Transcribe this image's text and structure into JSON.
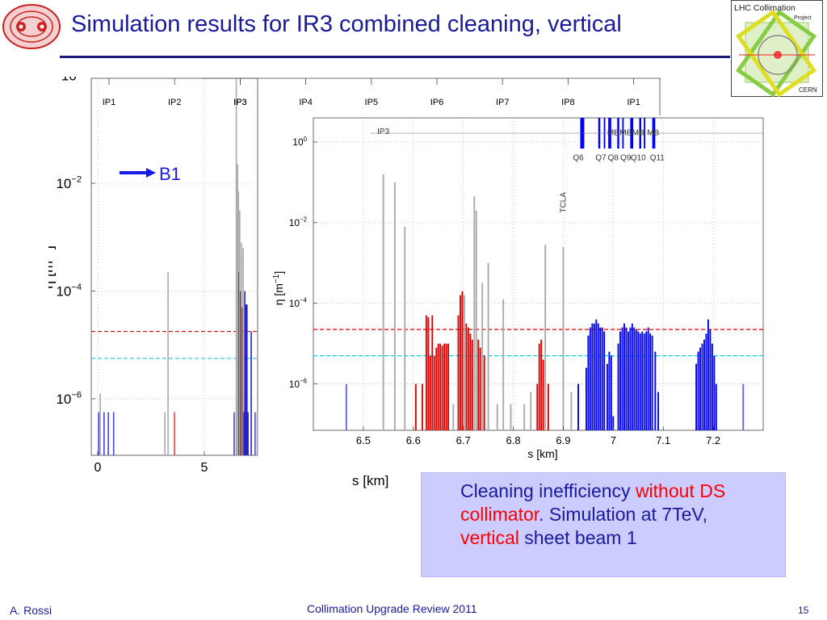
{
  "slide": {
    "title": "Simulation results for IR3 combined cleaning, vertical",
    "author": "A. Rossi",
    "event": "Collimation Upgrade Review 2011",
    "page_number": "15",
    "logo_right_lines": [
      "LHC Collimation",
      "Project",
      "CERN"
    ],
    "beam_label": "B1",
    "info_box": {
      "parts": [
        {
          "text": "Cleaning inefficiency ",
          "highlight": false
        },
        {
          "text": "without",
          "highlight": true
        },
        {
          "text": " ",
          "highlight": false
        },
        {
          "text": "DS collimator",
          "highlight": true
        },
        {
          "text": ". Simulation at 7TeV, ",
          "highlight": false
        },
        {
          "text": "vertical",
          "highlight": true
        },
        {
          "text": " sheet beam 1",
          "highlight": false
        }
      ]
    },
    "colors": {
      "title": "#1a1a9e",
      "highlight": "#ff0000",
      "info_bg": "#ccccff",
      "beam_arrow": "#1a1ae6"
    }
  },
  "chart_data": [
    {
      "type": "bar",
      "panel": "full ring",
      "ylabel_parts": [
        "η [m",
        "−1",
        "]"
      ],
      "xlabel": "s [km]",
      "yscale": "log",
      "ylim_exp": [
        -7.05,
        -0.05
      ],
      "xlim": [
        -0.3,
        7.5
      ],
      "xtick_labels": [
        {
          "value": 0,
          "label": "0"
        },
        {
          "value": 5,
          "label": "5"
        }
      ],
      "ytick_labels": [
        {
          "exp": 0,
          "label": "10",
          "sup": "0"
        },
        {
          "exp": -2,
          "label": "10",
          "sup": "−2"
        },
        {
          "exp": -4,
          "label": "10",
          "sup": "−4"
        },
        {
          "exp": -6,
          "label": "10",
          "sup": "−6"
        }
      ],
      "ip_labels": [
        {
          "name": "IP1",
          "s": 0
        },
        {
          "name": "IP2",
          "s": 3.33
        },
        {
          "name": "IP3",
          "s": 6.66
        },
        {
          "name": "IP4",
          "s": 10.0
        },
        {
          "name": "IP5",
          "s": 13.33
        },
        {
          "name": "IP6",
          "s": 16.66
        },
        {
          "name": "IP7",
          "s": 20.0
        },
        {
          "name": "IP8",
          "s": 23.33
        },
        {
          "name": "IP1",
          "s": 26.66
        }
      ],
      "reference_lines": [
        {
          "exp": -4.75,
          "color": "#e00000"
        },
        {
          "exp": -5.25,
          "color": "#00d0e0"
        }
      ],
      "loss_bars": [
        {
          "s": 0.05,
          "exp": -6.25,
          "color": "#4444ee"
        },
        {
          "s": 0.12,
          "exp": -5.9,
          "color": "#aaaaaa"
        },
        {
          "s": 0.3,
          "exp": -6.25,
          "color": "#4444ee"
        },
        {
          "s": 0.5,
          "exp": -6.25,
          "color": "#4444ee"
        },
        {
          "s": 0.75,
          "exp": -6.25,
          "color": "#4444ee"
        },
        {
          "s": 3.15,
          "exp": -6.25,
          "color": "#aaaaaa"
        },
        {
          "s": 3.3,
          "exp": -3.65,
          "color": "#aaaaaa"
        },
        {
          "s": 3.6,
          "exp": -6.25,
          "color": "#ee4444"
        },
        {
          "s": 6.4,
          "exp": -6.25,
          "color": "#4444ee"
        },
        {
          "s": 6.5,
          "exp": -0.05,
          "color": "#aaaaaa"
        },
        {
          "s": 6.56,
          "exp": -1.65,
          "color": "#aaaaaa"
        },
        {
          "s": 6.6,
          "exp": -2.15,
          "color": "#aaaaaa"
        },
        {
          "s": 6.63,
          "exp": -3.65,
          "color": "#e00000"
        },
        {
          "s": 6.66,
          "exp": -2.5,
          "color": "#aaaaaa"
        },
        {
          "s": 6.7,
          "exp": -4.0,
          "color": "#e00000"
        },
        {
          "s": 6.74,
          "exp": -3.1,
          "color": "#aaaaaa"
        },
        {
          "s": 6.78,
          "exp": -4.3,
          "color": "#e00000"
        },
        {
          "s": 6.82,
          "exp": -3.2,
          "color": "#aaaaaa"
        },
        {
          "s": 6.86,
          "exp": -6.25,
          "color": "#2222cc"
        },
        {
          "s": 6.9,
          "exp": -4.0,
          "color": "#2222cc"
        },
        {
          "s": 6.95,
          "exp": -4.25,
          "color": "#2222cc"
        },
        {
          "s": 7.0,
          "exp": -4.25,
          "color": "#2222cc"
        },
        {
          "s": 7.05,
          "exp": -6.25,
          "color": "#2222cc"
        },
        {
          "s": 7.2,
          "exp": -4.75,
          "color": "#2222cc"
        },
        {
          "s": 7.38,
          "exp": -6.25,
          "color": "#4444ee"
        },
        {
          "s": 7.48,
          "exp": -6.25,
          "color": "#aaaaaa"
        }
      ]
    },
    {
      "type": "bar",
      "panel": "zoom on dispersion suppressor",
      "ylabel_parts": [
        "η [m",
        "−1",
        "]"
      ],
      "xlabel": "s [km]",
      "yscale": "log",
      "ylim_exp": [
        -7.15,
        0.6
      ],
      "xlim": [
        6.4,
        7.3
      ],
      "xtick_labels": [
        {
          "value": 6.5,
          "label": "6.5"
        },
        {
          "value": 6.6,
          "label": "6.6"
        },
        {
          "value": 6.7,
          "label": "6.7"
        },
        {
          "value": 6.8,
          "label": "6.8"
        },
        {
          "value": 6.9,
          "label": "6.9"
        },
        {
          "value": 7.0,
          "label": "7"
        },
        {
          "value": 7.1,
          "label": "7.1"
        },
        {
          "value": 7.2,
          "label": "7.2"
        }
      ],
      "ytick_labels": [
        {
          "exp": 0,
          "label": "10",
          "sup": "0"
        },
        {
          "exp": -2,
          "label": "10",
          "sup": "−2"
        },
        {
          "exp": -4,
          "label": "10",
          "sup": "−4"
        },
        {
          "exp": -6,
          "label": "10",
          "sup": "−6"
        }
      ],
      "annotations": [
        {
          "text": "IP3",
          "s": 6.54,
          "exp": 0.2
        },
        {
          "text": "TCLA",
          "s": 6.905,
          "exp": -1.5,
          "rotate": true
        },
        {
          "text": "MB",
          "s": 7.0,
          "exp": 0.17
        },
        {
          "text": "MB",
          "s": 7.025,
          "exp": 0.17
        },
        {
          "text": "MB",
          "s": 7.05,
          "exp": 0.17
        },
        {
          "text": "MB",
          "s": 7.08,
          "exp": 0.17
        },
        {
          "text": "Q6",
          "s": 6.93,
          "exp": -0.45
        },
        {
          "text": "Q7",
          "s": 6.975,
          "exp": -0.45
        },
        {
          "text": "Q8",
          "s": 7.0,
          "exp": -0.45
        },
        {
          "text": "Q9",
          "s": 7.025,
          "exp": -0.45
        },
        {
          "text": "Q10",
          "s": 7.05,
          "exp": -0.45
        },
        {
          "text": "Q11",
          "s": 7.088,
          "exp": -0.45
        }
      ],
      "magnets": [
        {
          "s0": 6.934,
          "s1": 6.942,
          "color": "#0000ff"
        },
        {
          "s0": 6.97,
          "s1": 6.974,
          "color": "#0000ff"
        },
        {
          "s0": 6.981,
          "s1": 6.984,
          "color": "#0000ff"
        },
        {
          "s0": 6.99,
          "s1": 6.996,
          "color": "#0000ff"
        },
        {
          "s0": 7.008,
          "s1": 7.012,
          "color": "#0000ff"
        },
        {
          "s0": 7.018,
          "s1": 7.021,
          "color": "#0000ff"
        },
        {
          "s0": 7.034,
          "s1": 7.04,
          "color": "#0000ff"
        },
        {
          "s0": 7.052,
          "s1": 7.056,
          "color": "#0000ff"
        },
        {
          "s0": 7.061,
          "s1": 7.064,
          "color": "#0000ff"
        },
        {
          "s0": 7.078,
          "s1": 7.084,
          "color": "#0000ff"
        }
      ],
      "reference_lines": [
        {
          "exp": -4.65,
          "color": "#e00000"
        },
        {
          "exp": -5.3,
          "color": "#00d0e0"
        }
      ],
      "loss_bars": [
        {
          "s": 6.466,
          "exp": -6.0,
          "color": "#6666ee"
        },
        {
          "s": 6.54,
          "exp": -0.8,
          "color": "#aaaaaa"
        },
        {
          "s": 6.563,
          "exp": -1.0,
          "color": "#aaaaaa"
        },
        {
          "s": 6.583,
          "exp": -2.1,
          "color": "#aaaaaa"
        },
        {
          "s": 6.605,
          "exp": -6.0,
          "color": "#e00000"
        },
        {
          "s": 6.618,
          "exp": -6.0,
          "color": "#e00000"
        },
        {
          "s": 6.626,
          "exp": -4.3,
          "color": "#e00000"
        },
        {
          "s": 6.63,
          "exp": -4.35,
          "color": "#e00000"
        },
        {
          "s": 6.634,
          "exp": -5.3,
          "color": "#e00000"
        },
        {
          "s": 6.638,
          "exp": -4.3,
          "color": "#e00000"
        },
        {
          "s": 6.642,
          "exp": -5.3,
          "color": "#e00000"
        },
        {
          "s": 6.646,
          "exp": -5.1,
          "color": "#e00000"
        },
        {
          "s": 6.65,
          "exp": -5.0,
          "color": "#e00000"
        },
        {
          "s": 6.654,
          "exp": -5.0,
          "color": "#e00000"
        },
        {
          "s": 6.658,
          "exp": -5.05,
          "color": "#e00000"
        },
        {
          "s": 6.662,
          "exp": -5.0,
          "color": "#e00000"
        },
        {
          "s": 6.666,
          "exp": -5.0,
          "color": "#e00000"
        },
        {
          "s": 6.67,
          "exp": -5.0,
          "color": "#e00000"
        },
        {
          "s": 6.68,
          "exp": -6.5,
          "color": "#aaaaaa"
        },
        {
          "s": 6.69,
          "exp": -4.3,
          "color": "#e00000"
        },
        {
          "s": 6.694,
          "exp": -3.8,
          "color": "#e00000"
        },
        {
          "s": 6.698,
          "exp": -3.7,
          "color": "#e00000"
        },
        {
          "s": 6.702,
          "exp": -3.8,
          "color": "#aaaaaa"
        },
        {
          "s": 6.706,
          "exp": -4.5,
          "color": "#e00000"
        },
        {
          "s": 6.71,
          "exp": -4.6,
          "color": "#e00000"
        },
        {
          "s": 6.714,
          "exp": -4.75,
          "color": "#e00000"
        },
        {
          "s": 6.718,
          "exp": -4.9,
          "color": "#e00000"
        },
        {
          "s": 6.722,
          "exp": -1.35,
          "color": "#aaaaaa"
        },
        {
          "s": 6.726,
          "exp": -1.7,
          "color": "#aaaaaa"
        },
        {
          "s": 6.73,
          "exp": -4.9,
          "color": "#e00000"
        },
        {
          "s": 6.734,
          "exp": -5.1,
          "color": "#e00000"
        },
        {
          "s": 6.738,
          "exp": -3.5,
          "color": "#aaaaaa"
        },
        {
          "s": 6.742,
          "exp": -5.3,
          "color": "#e00000"
        },
        {
          "s": 6.75,
          "exp": -3.0,
          "color": "#aaaaaa"
        },
        {
          "s": 6.768,
          "exp": -6.5,
          "color": "#aaaaaa"
        },
        {
          "s": 6.78,
          "exp": -3.9,
          "color": "#aaaaaa"
        },
        {
          "s": 6.795,
          "exp": -6.5,
          "color": "#aaaaaa"
        },
        {
          "s": 6.822,
          "exp": -6.5,
          "color": "#aaaaaa"
        },
        {
          "s": 6.835,
          "exp": -6.2,
          "color": "#aaaaaa"
        },
        {
          "s": 6.848,
          "exp": -6.0,
          "color": "#e00000"
        },
        {
          "s": 6.852,
          "exp": -5.0,
          "color": "#e00000"
        },
        {
          "s": 6.856,
          "exp": -4.9,
          "color": "#e00000"
        },
        {
          "s": 6.86,
          "exp": -5.4,
          "color": "#e00000"
        },
        {
          "s": 6.864,
          "exp": -2.55,
          "color": "#aaaaaa"
        },
        {
          "s": 6.87,
          "exp": -6.0,
          "color": "#e00000"
        },
        {
          "s": 6.9,
          "exp": -2.6,
          "color": "#aaaaaa"
        },
        {
          "s": 6.916,
          "exp": -6.2,
          "color": "#aaaaaa"
        },
        {
          "s": 6.93,
          "exp": -6.0,
          "color": "#0000ff"
        },
        {
          "s": 6.946,
          "exp": -5.6,
          "color": "#0000ff"
        },
        {
          "s": 6.95,
          "exp": -4.8,
          "color": "#0000ff"
        },
        {
          "s": 6.954,
          "exp": -4.6,
          "color": "#0000ff"
        },
        {
          "s": 6.958,
          "exp": -4.5,
          "color": "#0000ff"
        },
        {
          "s": 6.962,
          "exp": -4.5,
          "color": "#0000ff"
        },
        {
          "s": 6.966,
          "exp": -4.4,
          "color": "#0000ff"
        },
        {
          "s": 6.97,
          "exp": -4.5,
          "color": "#0000ff"
        },
        {
          "s": 6.974,
          "exp": -4.6,
          "color": "#0000ff"
        },
        {
          "s": 6.978,
          "exp": -4.6,
          "color": "#0000ff"
        },
        {
          "s": 6.982,
          "exp": -4.7,
          "color": "#0000ff"
        },
        {
          "s": 6.988,
          "exp": -5.5,
          "color": "#0000ff"
        },
        {
          "s": 6.992,
          "exp": -5.2,
          "color": "#0000ff"
        },
        {
          "s": 6.996,
          "exp": -5.3,
          "color": "#0000ff"
        },
        {
          "s": 7.0,
          "exp": -6.8,
          "color": "#0000ff"
        },
        {
          "s": 7.01,
          "exp": -5.0,
          "color": "#0000ff"
        },
        {
          "s": 7.014,
          "exp": -4.7,
          "color": "#0000ff"
        },
        {
          "s": 7.018,
          "exp": -4.6,
          "color": "#0000ff"
        },
        {
          "s": 7.022,
          "exp": -4.5,
          "color": "#0000ff"
        },
        {
          "s": 7.026,
          "exp": -4.6,
          "color": "#0000ff"
        },
        {
          "s": 7.03,
          "exp": -4.7,
          "color": "#0000ff"
        },
        {
          "s": 7.034,
          "exp": -4.6,
          "color": "#0000ff"
        },
        {
          "s": 7.038,
          "exp": -4.5,
          "color": "#0000ff"
        },
        {
          "s": 7.042,
          "exp": -4.6,
          "color": "#0000ff"
        },
        {
          "s": 7.046,
          "exp": -4.65,
          "color": "#0000ff"
        },
        {
          "s": 7.05,
          "exp": -4.7,
          "color": "#0000ff"
        },
        {
          "s": 7.054,
          "exp": -4.75,
          "color": "#0000ff"
        },
        {
          "s": 7.058,
          "exp": -4.7,
          "color": "#0000ff"
        },
        {
          "s": 7.062,
          "exp": -4.75,
          "color": "#0000ff"
        },
        {
          "s": 7.066,
          "exp": -4.7,
          "color": "#0000ff"
        },
        {
          "s": 7.07,
          "exp": -4.6,
          "color": "#0000ff"
        },
        {
          "s": 7.074,
          "exp": -4.75,
          "color": "#0000ff"
        },
        {
          "s": 7.078,
          "exp": -4.8,
          "color": "#0000ff"
        },
        {
          "s": 7.084,
          "exp": -5.2,
          "color": "#0000ff"
        },
        {
          "s": 7.09,
          "exp": -6.2,
          "color": "#0000ff"
        },
        {
          "s": 7.166,
          "exp": -5.5,
          "color": "#0000ff"
        },
        {
          "s": 7.17,
          "exp": -5.2,
          "color": "#0000ff"
        },
        {
          "s": 7.174,
          "exp": -5.1,
          "color": "#0000ff"
        },
        {
          "s": 7.178,
          "exp": -5.0,
          "color": "#0000ff"
        },
        {
          "s": 7.182,
          "exp": -4.9,
          "color": "#0000ff"
        },
        {
          "s": 7.186,
          "exp": -4.75,
          "color": "#0000ff"
        },
        {
          "s": 7.19,
          "exp": -4.4,
          "color": "#0000ff"
        },
        {
          "s": 7.194,
          "exp": -4.65,
          "color": "#0000ff"
        },
        {
          "s": 7.198,
          "exp": -5.0,
          "color": "#0000ff"
        },
        {
          "s": 7.202,
          "exp": -5.3,
          "color": "#0000ff"
        },
        {
          "s": 7.206,
          "exp": -6.0,
          "color": "#0000ff"
        },
        {
          "s": 7.26,
          "exp": -6.0,
          "color": "#6666ee"
        }
      ]
    }
  ]
}
